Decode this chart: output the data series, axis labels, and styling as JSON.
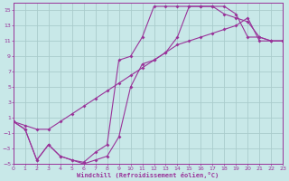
{
  "xlabel": "Windchill (Refroidissement éolien,°C)",
  "line_color": "#993399",
  "bg_color": "#c8e8e8",
  "grid_color": "#aacccc",
  "xlim": [
    0,
    23
  ],
  "ylim": [
    -5,
    16
  ],
  "xtick_vals": [
    0,
    1,
    2,
    3,
    4,
    5,
    6,
    7,
    8,
    9,
    10,
    11,
    12,
    13,
    14,
    15,
    16,
    17,
    18,
    19,
    20,
    21,
    22,
    23
  ],
  "ytick_vals": [
    -5,
    -3,
    -1,
    1,
    3,
    5,
    7,
    9,
    11,
    13,
    15
  ],
  "line1_x": [
    0,
    1,
    2,
    3,
    4,
    5,
    6,
    7,
    8,
    9,
    10,
    11,
    12,
    13,
    14,
    15,
    16,
    17,
    18,
    19,
    20,
    21,
    22,
    23
  ],
  "line1_y": [
    0.5,
    -0.5,
    -4.5,
    -2.5,
    -4.0,
    -4.5,
    -5.0,
    -4.5,
    -4.0,
    -1.5,
    5.0,
    8.0,
    8.5,
    9.5,
    11.5,
    15.5,
    15.5,
    15.5,
    15.5,
    14.5,
    11.5,
    11.5,
    11.0,
    11.0
  ],
  "line2_x": [
    0,
    1,
    2,
    3,
    4,
    5,
    6,
    7,
    8,
    9,
    10,
    11,
    12,
    13,
    14,
    15,
    16,
    17,
    18,
    19,
    20,
    21,
    22,
    23
  ],
  "line2_y": [
    0.5,
    -0.5,
    -4.5,
    -2.5,
    -4.0,
    -4.5,
    -4.8,
    -3.5,
    -2.5,
    8.5,
    9.0,
    11.5,
    15.5,
    15.5,
    15.5,
    15.5,
    15.5,
    15.5,
    14.5,
    14.0,
    13.5,
    11.5,
    11.0,
    11.0
  ],
  "line3_x": [
    0,
    1,
    2,
    3,
    4,
    5,
    6,
    7,
    8,
    9,
    10,
    11,
    12,
    13,
    14,
    15,
    16,
    17,
    18,
    19,
    20,
    21,
    22,
    23
  ],
  "line3_y": [
    0.5,
    0.0,
    -0.5,
    -0.5,
    0.5,
    1.5,
    2.5,
    3.5,
    4.5,
    5.5,
    6.5,
    7.5,
    8.5,
    9.5,
    10.5,
    11.0,
    11.5,
    12.0,
    12.5,
    13.0,
    14.0,
    11.0,
    11.0,
    11.0
  ]
}
